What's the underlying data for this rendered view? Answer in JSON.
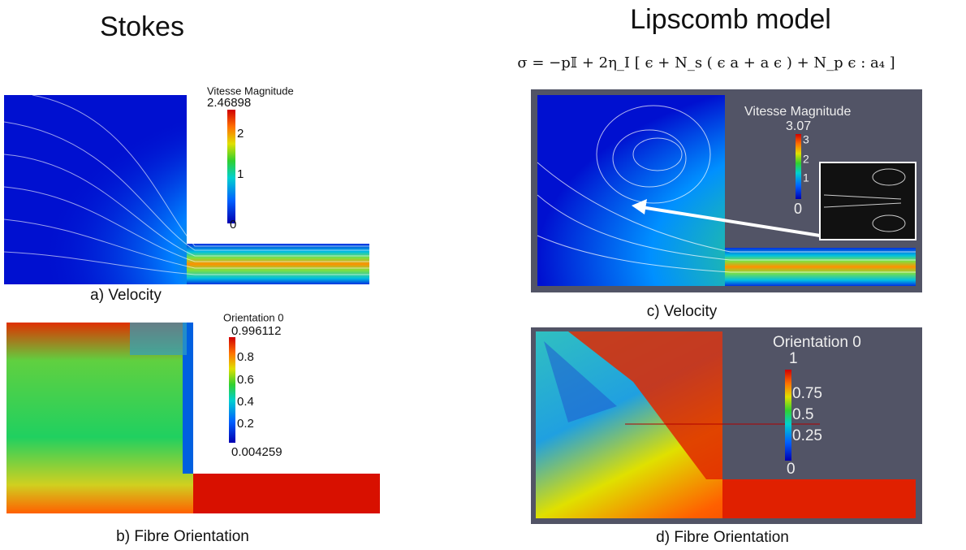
{
  "stokes": {
    "title": "Stokes",
    "velocity": {
      "legend_title": "Vitesse Magnitude",
      "legend_ticks": [
        "2.46898",
        "2",
        "1",
        "0"
      ],
      "caption": "a) Velocity"
    },
    "orientation": {
      "legend_title": "Orientation 0",
      "legend_ticks": [
        "0.996112",
        "0.8",
        "0.6",
        "0.4",
        "0.2",
        "0.004259"
      ],
      "caption": "b) Fibre Orientation"
    }
  },
  "lipscomb": {
    "title": "Lipscomb model",
    "equation": "σ = −p𝕀 + 2η_I [ ϵ + N_s ( ϵ a + a ϵ ) + N_p ϵ : a₄ ]",
    "velocity": {
      "legend_title": "Vitesse Magnitude",
      "legend_ticks": [
        "3.07",
        "3",
        "2",
        "1",
        "0"
      ],
      "caption": "c) Velocity"
    },
    "orientation": {
      "legend_title": "Orientation 0",
      "legend_ticks": [
        "1",
        "0.75",
        "0.5",
        "0.25",
        "0"
      ],
      "caption": "d) Fibre Orientation"
    }
  }
}
